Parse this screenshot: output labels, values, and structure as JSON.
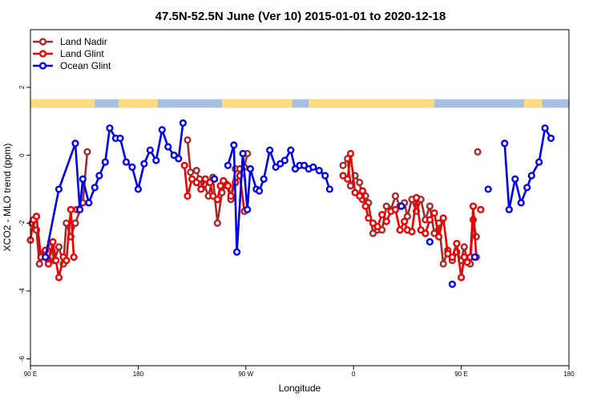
{
  "chart_data": {
    "type": "line",
    "title": "47.5N-52.5N June (Ver 10)   2015-01-01 to 2020-12-18",
    "xlabel": "Longitude",
    "ylabel": "XCO2 - MLO trend (ppm)",
    "xlim": [
      -90,
      270
    ],
    "ylim": [
      -6.2,
      3.7
    ],
    "x_ticks": [
      {
        "value": -90,
        "label": "90 E"
      },
      {
        "value": -18,
        "label": "180"
      },
      {
        "value": 54,
        "label": "90 W"
      },
      {
        "value": 126,
        "label": "0"
      },
      {
        "value": 198,
        "label": "90 E"
      },
      {
        "value": 270,
        "label": "180"
      }
    ],
    "y_ticks": [
      {
        "value": -6,
        "label": "-6"
      },
      {
        "value": -4,
        "label": "-4"
      },
      {
        "value": -2,
        "label": "-2"
      },
      {
        "value": 0,
        "label": "0"
      },
      {
        "value": 2,
        "label": "2"
      }
    ],
    "grid": false,
    "legend_position": "top-left",
    "surface_band": {
      "y_range": [
        1.4,
        1.65
      ],
      "land_color": "#FFDB80",
      "ocean_color": "#A8C0E0",
      "land_ranges": [
        [
          -90,
          -47
        ],
        [
          -31,
          -5
        ],
        [
          38,
          85
        ],
        [
          96,
          180
        ],
        [
          240,
          252
        ]
      ]
    },
    "series": [
      {
        "name": "Land Nadir",
        "color": "#A52A2A",
        "segments": [
          [
            [
              -89,
              -2.0
            ],
            [
              -86,
              -2.2
            ],
            [
              -84,
              -3.2
            ],
            [
              -81,
              -2.9
            ],
            [
              -78,
              -3.1
            ],
            [
              -76,
              -2.7
            ],
            [
              -74,
              -3.1
            ],
            [
              -71,
              -2.7
            ],
            [
              -68,
              -3.2
            ],
            [
              -66,
              -2.0
            ],
            [
              -63,
              -2.4
            ],
            [
              -60,
              -2.0
            ],
            [
              -55,
              -1.4
            ],
            [
              -52,
              0.1
            ]
          ],
          [
            [
              15,
              0.45
            ],
            [
              17,
              -0.5
            ],
            [
              21,
              -0.45
            ],
            [
              23,
              -0.7
            ],
            [
              26,
              -0.85
            ],
            [
              29,
              -1.2
            ],
            [
              32,
              -0.65
            ],
            [
              35,
              -2.0
            ],
            [
              38,
              -1.1
            ],
            [
              41,
              -0.85
            ],
            [
              44,
              -1.3
            ],
            [
              47,
              -0.4
            ],
            [
              50,
              -0.4
            ],
            [
              53,
              -0.35
            ],
            [
              55,
              0.05
            ]
          ],
          [
            [
              119,
              -0.3
            ],
            [
              122,
              -0.1
            ],
            [
              124,
              -0.9
            ],
            [
              127,
              -0.6
            ],
            [
              130,
              -0.8
            ],
            [
              132,
              -1.3
            ],
            [
              134,
              -1.2
            ],
            [
              136,
              -1.4
            ],
            [
              139,
              -2.3
            ],
            [
              142,
              -2.2
            ],
            [
              145,
              -2.2
            ],
            [
              148,
              -1.5
            ],
            [
              151,
              -1.6
            ],
            [
              154,
              -1.2
            ],
            [
              157,
              -1.5
            ],
            [
              160,
              -1.4
            ],
            [
              162,
              -1.8
            ],
            [
              165,
              -1.3
            ],
            [
              168,
              -1.65
            ],
            [
              171,
              -1.3
            ],
            [
              174,
              -1.9
            ],
            [
              177,
              -1.5
            ],
            [
              180,
              -2.3
            ],
            [
              183,
              -2.0
            ],
            [
              186,
              -3.2
            ],
            [
              189,
              -2.8
            ],
            [
              192,
              -3.1
            ],
            [
              195,
              -2.85
            ],
            [
              198,
              -3.1
            ],
            [
              200,
              -2.7
            ],
            [
              202,
              -3.1
            ],
            [
              204,
              -3.2
            ],
            [
              206,
              -1.9
            ],
            [
              208,
              -2.4
            ]
          ],
          [
            [
              209,
              0.1
            ]
          ]
        ]
      },
      {
        "name": "Land Glint",
        "color": "#EE0000",
        "segments": [
          [
            [
              -90,
              -2.5
            ],
            [
              -88,
              -1.9
            ],
            [
              -86,
              -1.8
            ],
            [
              -83,
              -3.0
            ],
            [
              -80,
              -2.8
            ],
            [
              -78,
              -3.2
            ],
            [
              -75,
              -2.55
            ],
            [
              -73,
              -3.1
            ],
            [
              -71,
              -3.6
            ],
            [
              -68,
              -3.0
            ],
            [
              -66,
              -3.1
            ],
            [
              -63,
              -1.6
            ],
            [
              -61,
              -3.0
            ]
          ],
          [
            [
              -59,
              -1.6
            ]
          ],
          [
            [
              13,
              -0.3
            ],
            [
              15,
              -1.2
            ],
            [
              18,
              -0.7
            ],
            [
              21,
              -0.8
            ],
            [
              24,
              -1.0
            ],
            [
              27,
              -0.7
            ],
            [
              30,
              -0.8
            ],
            [
              32,
              -1.2
            ],
            [
              35,
              -1.3
            ],
            [
              37,
              -0.9
            ],
            [
              39,
              -0.75
            ],
            [
              42,
              -0.9
            ],
            [
              44,
              -1.2
            ],
            [
              47,
              -0.8
            ],
            [
              50,
              -0.6
            ],
            [
              53,
              -1.65
            ]
          ],
          [
            [
              119,
              -0.6
            ],
            [
              122,
              -0.7
            ],
            [
              124,
              0.05
            ],
            [
              127,
              -1.1
            ],
            [
              130,
              -1.2
            ],
            [
              132,
              -1.05
            ],
            [
              134,
              -1.5
            ],
            [
              136,
              -1.85
            ],
            [
              139,
              -2.0
            ],
            [
              142,
              -2.1
            ],
            [
              145,
              -1.75
            ],
            [
              148,
              -1.95
            ],
            [
              151,
              -1.65
            ],
            [
              154,
              -1.6
            ],
            [
              157,
              -2.2
            ],
            [
              160,
              -1.95
            ],
            [
              162,
              -2.2
            ],
            [
              165,
              -2.25
            ],
            [
              168,
              -1.25
            ],
            [
              171,
              -2.2
            ],
            [
              174,
              -2.3
            ],
            [
              177,
              -1.9
            ],
            [
              180,
              -1.7
            ],
            [
              183,
              -2.4
            ],
            [
              186,
              -1.85
            ],
            [
              189,
              -2.9
            ],
            [
              192,
              -3.0
            ],
            [
              195,
              -2.6
            ],
            [
              198,
              -3.6
            ],
            [
              200,
              -3.0
            ],
            [
              202,
              -3.15
            ],
            [
              204,
              -3.0
            ],
            [
              206,
              -1.5
            ],
            [
              208,
              -3.0
            ]
          ],
          [
            [
              211,
              -1.6
            ]
          ]
        ]
      },
      {
        "name": "Ocean Glint",
        "color": "#0000EE",
        "segments": [
          [
            [
              -80,
              -3.0
            ],
            [
              -71,
              -1.0
            ],
            [
              -60,
              0.35
            ],
            [
              -57,
              -1.6
            ],
            [
              -55,
              -0.7
            ],
            [
              -51,
              -1.4
            ],
            [
              -47,
              -0.95
            ],
            [
              -44,
              -0.6
            ],
            [
              -40,
              -0.2
            ],
            [
              -37,
              0.8
            ],
            [
              -33,
              0.5
            ],
            [
              -30,
              0.5
            ],
            [
              -26,
              -0.2
            ],
            [
              -22,
              -0.35
            ],
            [
              -18,
              -1.0
            ],
            [
              -14,
              -0.25
            ],
            [
              -10,
              0.15
            ],
            [
              -6,
              -0.15
            ],
            [
              -2,
              0.75
            ],
            [
              2,
              0.25
            ],
            [
              6,
              0.0
            ],
            [
              9,
              -0.1
            ],
            [
              12,
              0.95
            ]
          ],
          [
            [
              33,
              -0.7
            ]
          ],
          [
            [
              42,
              -0.3
            ],
            [
              46,
              0.3
            ],
            [
              48,
              -2.85
            ],
            [
              52,
              0.05
            ],
            [
              55,
              -1.6
            ],
            [
              57,
              -0.4
            ],
            [
              61,
              -1.0
            ],
            [
              63,
              -1.05
            ],
            [
              66,
              -0.7
            ],
            [
              70,
              0.15
            ],
            [
              74,
              -0.35
            ],
            [
              77,
              -0.25
            ],
            [
              80,
              -0.15
            ],
            [
              84,
              0.15
            ],
            [
              87,
              -0.4
            ],
            [
              90,
              -0.3
            ],
            [
              93,
              -0.3
            ],
            [
              96,
              -0.4
            ],
            [
              99,
              -0.35
            ],
            [
              103,
              -0.45
            ],
            [
              107,
              -0.6
            ],
            [
              110,
              -1.0
            ]
          ],
          [
            [
              158,
              -1.5
            ]
          ],
          [
            [
              177,
              -2.55
            ]
          ],
          [
            [
              192,
              -3.8
            ]
          ],
          [
            [
              207,
              -3.0
            ]
          ],
          [
            [
              216,
              -1.0
            ]
          ],
          [
            [
              227,
              0.35
            ],
            [
              230,
              -1.6
            ],
            [
              234,
              -0.7
            ],
            [
              238,
              -1.4
            ],
            [
              242,
              -0.95
            ],
            [
              245,
              -0.6
            ],
            [
              250,
              -0.2
            ],
            [
              254,
              0.8
            ],
            [
              258,
              0.5
            ]
          ]
        ]
      }
    ]
  }
}
